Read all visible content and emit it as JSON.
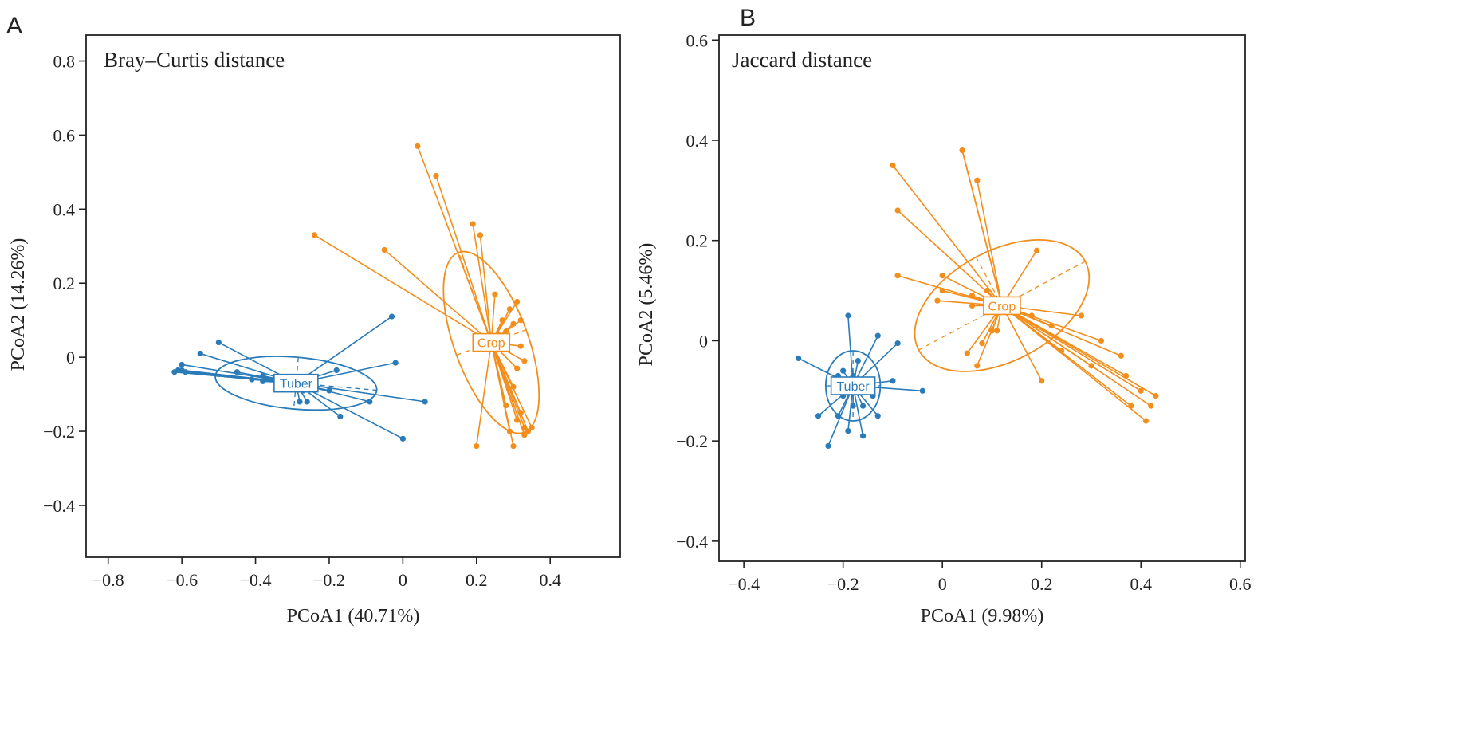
{
  "colors": {
    "tuber": "#2b7bb9",
    "crop": "#f28e1c",
    "axis": "#222222"
  },
  "chart_data": [
    {
      "panel_label": "A",
      "type": "scatter",
      "title": "Bray–Curtis distance",
      "xlabel": "PCoA1 (40.71%)",
      "ylabel": "PCoA2 (14.26%)",
      "xlim": [
        -0.86,
        0.59
      ],
      "ylim": [
        -0.54,
        0.87
      ],
      "xticks": [
        -0.8,
        -0.6,
        -0.4,
        -0.2,
        0,
        0.2,
        0.4
      ],
      "yticks": [
        -0.4,
        -0.2,
        0,
        0.2,
        0.4,
        0.6,
        0.8
      ],
      "series": [
        {
          "name": "Tuber",
          "color_key": "tuber",
          "centroid": [
            -0.29,
            -0.07
          ],
          "ellipse": {
            "rx": 0.22,
            "ry": 0.07,
            "angle": -5
          },
          "points": [
            [
              -0.62,
              -0.04
            ],
            [
              -0.61,
              -0.035
            ],
            [
              -0.6,
              -0.02
            ],
            [
              -0.6,
              -0.035
            ],
            [
              -0.59,
              -0.04
            ],
            [
              -0.55,
              0.01
            ],
            [
              -0.5,
              0.04
            ],
            [
              -0.45,
              -0.04
            ],
            [
              -0.41,
              -0.06
            ],
            [
              -0.38,
              -0.05
            ],
            [
              -0.38,
              -0.065
            ],
            [
              -0.32,
              -0.06
            ],
            [
              -0.3,
              -0.08
            ],
            [
              -0.28,
              -0.12
            ],
            [
              -0.27,
              -0.09
            ],
            [
              -0.26,
              -0.12
            ],
            [
              -0.26,
              -0.07
            ],
            [
              -0.2,
              -0.09
            ],
            [
              -0.18,
              -0.035
            ],
            [
              -0.17,
              -0.16
            ],
            [
              -0.09,
              -0.12
            ],
            [
              -0.03,
              0.11
            ],
            [
              -0.02,
              -0.015
            ],
            [
              0.0,
              -0.22
            ],
            [
              0.06,
              -0.12
            ]
          ]
        },
        {
          "name": "Crop",
          "color_key": "crop",
          "centroid": [
            0.24,
            0.04
          ],
          "ellipse": {
            "rx": 0.26,
            "ry": 0.1,
            "angle": 110
          },
          "points": [
            [
              -0.24,
              0.33
            ],
            [
              -0.05,
              0.29
            ],
            [
              0.04,
              0.57
            ],
            [
              0.09,
              0.49
            ],
            [
              0.19,
              0.36
            ],
            [
              0.2,
              -0.24
            ],
            [
              0.21,
              0.33
            ],
            [
              0.24,
              0.04
            ],
            [
              0.25,
              0.17
            ],
            [
              0.26,
              0.06
            ],
            [
              0.27,
              0.1
            ],
            [
              0.28,
              0.07
            ],
            [
              0.28,
              -0.13
            ],
            [
              0.29,
              0.13
            ],
            [
              0.29,
              -0.2
            ],
            [
              0.3,
              -0.24
            ],
            [
              0.3,
              0.09
            ],
            [
              0.3,
              -0.08
            ],
            [
              0.31,
              -0.17
            ],
            [
              0.31,
              0.15
            ],
            [
              0.31,
              -0.03
            ],
            [
              0.32,
              0.03
            ],
            [
              0.32,
              -0.15
            ],
            [
              0.32,
              0.1
            ],
            [
              0.33,
              -0.19
            ],
            [
              0.33,
              -0.21
            ],
            [
              0.33,
              -0.01
            ],
            [
              0.34,
              -0.2
            ],
            [
              0.35,
              -0.19
            ]
          ]
        }
      ]
    },
    {
      "panel_label": "B",
      "type": "scatter",
      "title": "Jaccard distance",
      "xlabel": "PCoA1 (9.98%)",
      "ylabel": "PCoA2 (5.46%)",
      "xlim": [
        -0.45,
        0.61
      ],
      "ylim": [
        -0.44,
        0.61
      ],
      "xticks": [
        -0.4,
        -0.2,
        0,
        0.2,
        0.4,
        0.6
      ],
      "yticks": [
        -0.4,
        -0.2,
        0,
        0.2,
        0.4,
        0.6
      ],
      "series": [
        {
          "name": "Tuber",
          "color_key": "tuber",
          "centroid": [
            -0.18,
            -0.09
          ],
          "ellipse": {
            "rx": 0.055,
            "ry": 0.07,
            "angle": 0
          },
          "points": [
            [
              -0.29,
              -0.035
            ],
            [
              -0.25,
              -0.15
            ],
            [
              -0.23,
              -0.21
            ],
            [
              -0.21,
              -0.15
            ],
            [
              -0.21,
              -0.07
            ],
            [
              -0.2,
              -0.11
            ],
            [
              -0.2,
              -0.06
            ],
            [
              -0.19,
              -0.18
            ],
            [
              -0.19,
              0.05
            ],
            [
              -0.18,
              -0.13
            ],
            [
              -0.18,
              -0.07
            ],
            [
              -0.17,
              -0.04
            ],
            [
              -0.16,
              -0.13
            ],
            [
              -0.16,
              -0.19
            ],
            [
              -0.15,
              -0.09
            ],
            [
              -0.14,
              -0.11
            ],
            [
              -0.13,
              0.01
            ],
            [
              -0.13,
              -0.15
            ],
            [
              -0.1,
              -0.08
            ],
            [
              -0.09,
              -0.005
            ],
            [
              -0.04,
              -0.1
            ]
          ]
        },
        {
          "name": "Crop",
          "color_key": "crop",
          "centroid": [
            0.12,
            0.07
          ],
          "ellipse": {
            "rx": 0.19,
            "ry": 0.11,
            "angle": 28
          },
          "points": [
            [
              -0.1,
              0.35
            ],
            [
              -0.09,
              0.26
            ],
            [
              -0.09,
              0.13
            ],
            [
              -0.01,
              0.08
            ],
            [
              0.0,
              0.1
            ],
            [
              0.0,
              0.13
            ],
            [
              0.04,
              0.38
            ],
            [
              0.04,
              0.38
            ],
            [
              0.05,
              -0.025
            ],
            [
              0.06,
              0.07
            ],
            [
              0.06,
              0.09
            ],
            [
              0.07,
              0.32
            ],
            [
              0.07,
              -0.05
            ],
            [
              0.08,
              -0.005
            ],
            [
              0.09,
              0.1
            ],
            [
              0.1,
              0.02
            ],
            [
              0.11,
              0.02
            ],
            [
              0.12,
              0.06
            ],
            [
              0.13,
              0.08
            ],
            [
              0.15,
              0.06
            ],
            [
              0.18,
              0.05
            ],
            [
              0.19,
              0.18
            ],
            [
              0.2,
              -0.08
            ],
            [
              0.22,
              0.03
            ],
            [
              0.24,
              -0.02
            ],
            [
              0.28,
              0.05
            ],
            [
              0.3,
              -0.05
            ],
            [
              0.32,
              0.0
            ],
            [
              0.36,
              -0.03
            ],
            [
              0.37,
              -0.07
            ],
            [
              0.38,
              -0.13
            ],
            [
              0.4,
              -0.1
            ],
            [
              0.41,
              -0.16
            ],
            [
              0.42,
              -0.13
            ],
            [
              0.43,
              -0.11
            ]
          ]
        }
      ]
    }
  ]
}
